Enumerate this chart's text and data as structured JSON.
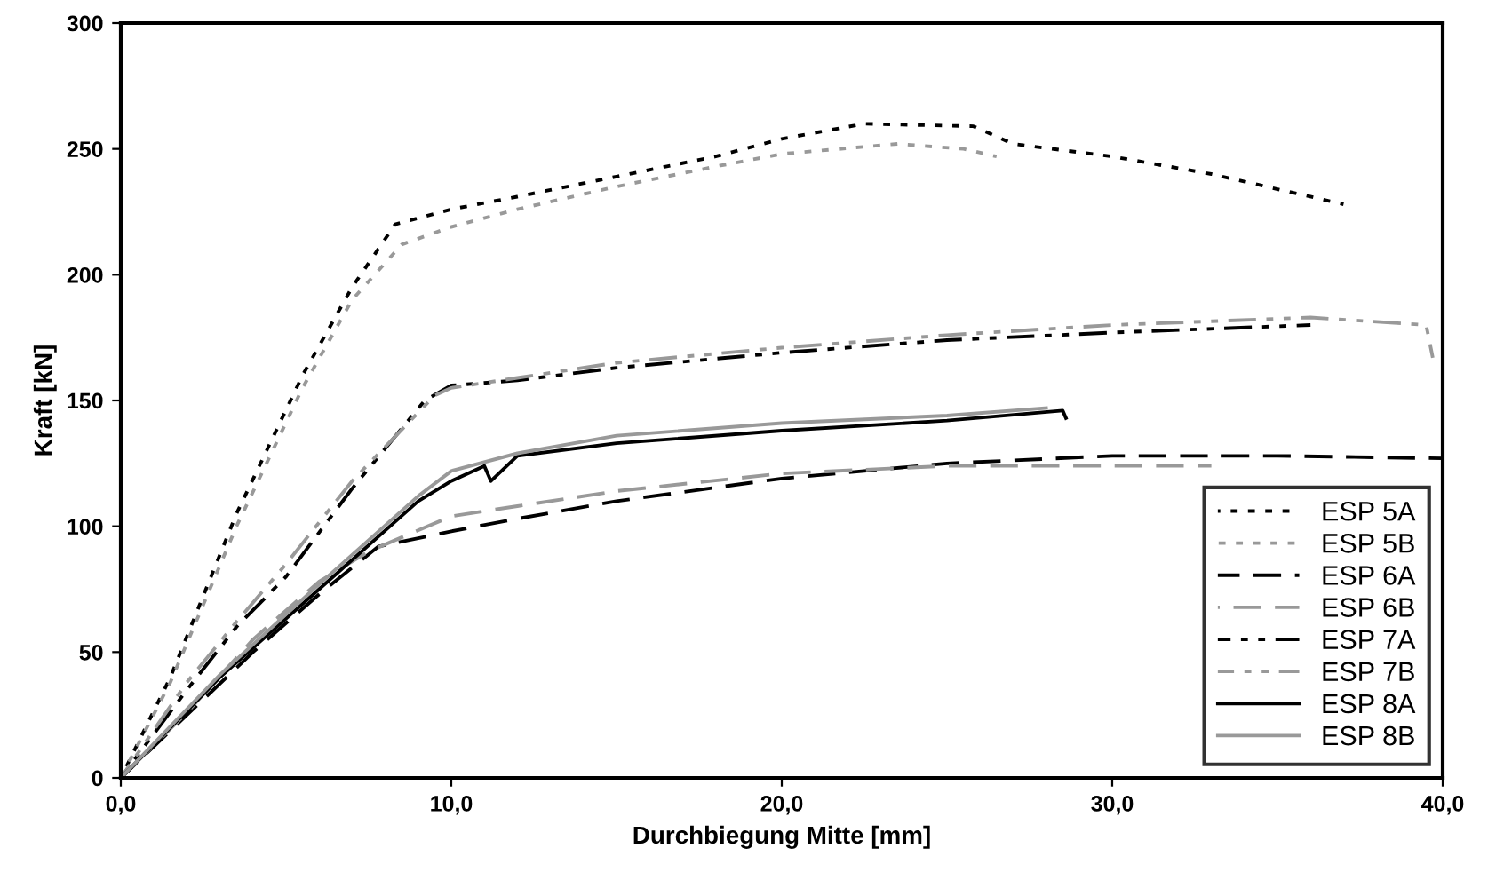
{
  "chart_data": {
    "type": "line",
    "xlabel": "Durchbiegung Mitte [mm]",
    "ylabel": "Kraft [kN]",
    "xlim": [
      0,
      40
    ],
    "xticks": [
      {
        "value": 0,
        "label": "0,0"
      },
      {
        "value": 10,
        "label": "10,0"
      },
      {
        "value": 20,
        "label": "20,0"
      },
      {
        "value": 30,
        "label": "30,0"
      },
      {
        "value": 40,
        "label": "40,0"
      }
    ],
    "ylim": [
      0,
      300
    ],
    "yticks": [
      0,
      50,
      100,
      150,
      200,
      250,
      300
    ],
    "grid": false,
    "legend": "bottom right",
    "marker": "none",
    "series": [
      {
        "name": "ESP 5A",
        "color": "#000000",
        "line_style": "dotted",
        "x": [
          0,
          1.5,
          3.5,
          5.5,
          7,
          8.3,
          10,
          12,
          15,
          18,
          20,
          22.5,
          25.8,
          27,
          30,
          33,
          37
        ],
        "values": [
          0,
          40,
          105,
          160,
          195,
          220,
          226,
          231,
          239,
          247,
          254,
          260,
          259,
          252,
          247,
          240,
          228
        ]
      },
      {
        "name": "ESP 5B",
        "color": "#999999",
        "line_style": "dotted",
        "x": [
          0,
          1.5,
          3.5,
          5.5,
          7,
          8.5,
          10,
          12,
          15,
          18,
          20,
          23.5,
          25.5,
          26.5
        ],
        "values": [
          0,
          38,
          100,
          155,
          190,
          212,
          219,
          226,
          235,
          243,
          248,
          252,
          250,
          247
        ]
      },
      {
        "name": "ESP 6A",
        "color": "#000000",
        "line_style": "dashed",
        "x": [
          0,
          2,
          4,
          6,
          7.8,
          10,
          12,
          15,
          20,
          25,
          30,
          35,
          40
        ],
        "values": [
          0,
          25,
          50,
          73,
          92,
          98,
          103,
          110,
          119,
          125,
          128,
          128,
          127
        ]
      },
      {
        "name": "ESP 6B",
        "color": "#999999",
        "line_style": "dashed",
        "x": [
          0,
          2,
          4,
          6,
          7.5,
          10,
          12,
          15,
          20,
          25,
          30,
          33
        ],
        "values": [
          0,
          26,
          55,
          78,
          90,
          104,
          108,
          114,
          121,
          124,
          124,
          124
        ]
      },
      {
        "name": "ESP 7A",
        "color": "#000000",
        "line_style": "dashdot",
        "x": [
          0,
          2,
          3.5,
          5,
          7,
          9.2,
          10,
          12,
          15,
          20,
          25,
          30,
          36
        ],
        "values": [
          0,
          35,
          60,
          80,
          115,
          150,
          156,
          158,
          163,
          169,
          174,
          177,
          180
        ]
      },
      {
        "name": "ESP 7B",
        "color": "#999999",
        "line_style": "dashdot",
        "x": [
          0,
          2,
          3.5,
          5,
          7,
          9.5,
          10,
          12,
          15,
          20,
          25,
          30,
          36,
          39.5,
          39.7
        ],
        "values": [
          0,
          38,
          62,
          85,
          118,
          152,
          155,
          159,
          165,
          171,
          176,
          180,
          183,
          180,
          167
        ]
      },
      {
        "name": "ESP 8A",
        "color": "#000000",
        "line_style": "solid",
        "x": [
          0,
          3,
          6,
          9,
          10,
          11,
          11.2,
          12,
          15,
          20,
          25,
          28.5,
          28.6
        ],
        "values": [
          0,
          40,
          75,
          110,
          118,
          124,
          118,
          128,
          133,
          138,
          142,
          146,
          143
        ]
      },
      {
        "name": "ESP 8B",
        "color": "#999999",
        "line_style": "solid",
        "x": [
          0,
          3,
          6,
          9,
          10,
          12,
          15,
          20,
          25,
          28
        ],
        "values": [
          0,
          41,
          77,
          112,
          122,
          129,
          136,
          141,
          144,
          147
        ]
      }
    ]
  }
}
